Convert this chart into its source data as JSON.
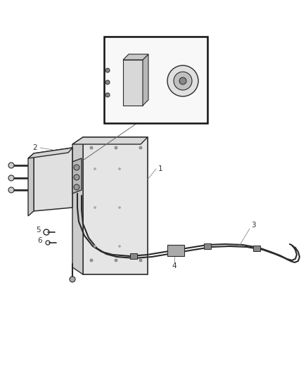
{
  "bg_color": "#ffffff",
  "dc": "#2a2a2a",
  "lc": "#555555",
  "gray1": "#cccccc",
  "gray2": "#e0e0e0",
  "gray3": "#aaaaaa",
  "label_color": "#333333",
  "label_fs": 7.5,
  "fig_width": 4.38,
  "fig_height": 5.33,
  "dpi": 100
}
